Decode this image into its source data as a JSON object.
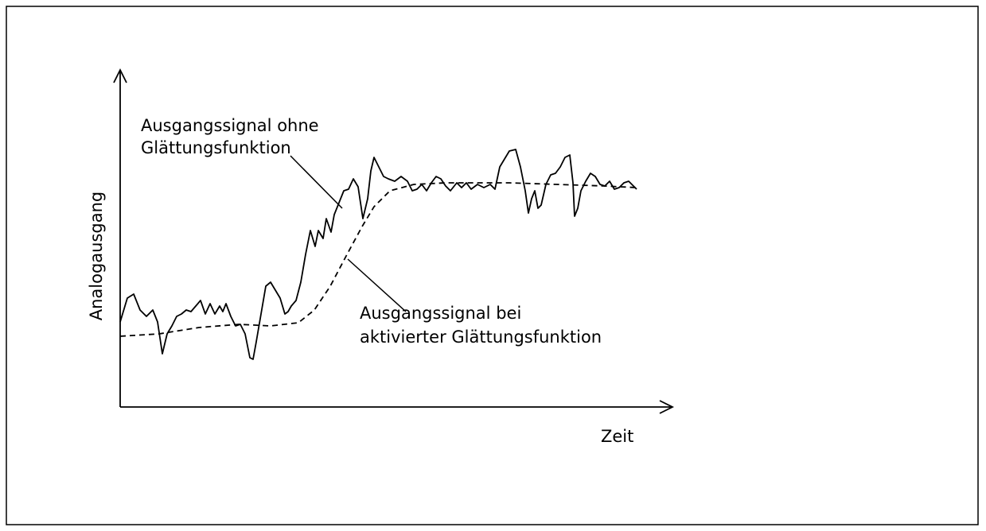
{
  "y_axis_label": "Analogausgang",
  "x_axis_label": "Zeit",
  "annotations": [
    {
      "lines": [
        "Ausgangssignal ohne",
        "Glättungsfunktion"
      ]
    },
    {
      "lines": [
        "Ausgangssignal bei",
        "aktivierter Glättungsfunktion"
      ]
    }
  ]
}
